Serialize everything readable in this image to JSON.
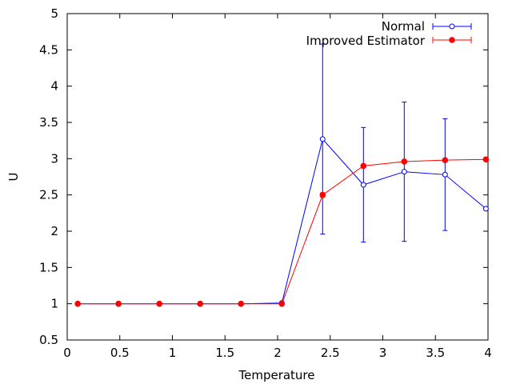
{
  "chart_data": {
    "type": "line",
    "title": "",
    "xlabel": "Temperature",
    "ylabel": "U",
    "xlim": [
      0,
      4
    ],
    "ylim": [
      0.5,
      5
    ],
    "xticks": [
      "0",
      "0.5",
      "1",
      "1.5",
      "2",
      "2.5",
      "3",
      "3.5",
      "4"
    ],
    "yticks": [
      "0.5",
      "1",
      "1.5",
      "2",
      "2.5",
      "3",
      "3.5",
      "4",
      "4.5",
      "5"
    ],
    "grid": false,
    "legend_position": "top-right",
    "series": [
      {
        "name": "Normal",
        "color": "#0000ff",
        "marker": "open-circle",
        "x": [
          0.1,
          0.488,
          0.876,
          1.264,
          1.652,
          2.04,
          2.428,
          2.816,
          3.204,
          3.592,
          3.98
        ],
        "y": [
          1.0,
          1.0,
          1.0,
          1.0,
          1.0,
          1.01,
          3.27,
          2.64,
          2.82,
          2.78,
          2.31
        ],
        "err": [
          0,
          0,
          0,
          0,
          0,
          0,
          1.31,
          0.79,
          0.96,
          0.77,
          0
        ]
      },
      {
        "name": "Improved Estimator",
        "color": "#ff0000",
        "marker": "filled-circle",
        "x": [
          0.1,
          0.488,
          0.876,
          1.264,
          1.652,
          2.04,
          2.428,
          2.816,
          3.204,
          3.592,
          3.98
        ],
        "y": [
          1.0,
          1.0,
          1.0,
          1.0,
          1.0,
          1.0,
          2.5,
          2.9,
          2.96,
          2.98,
          2.99
        ],
        "err": [
          0,
          0,
          0,
          0,
          0,
          0,
          0.03,
          0.02,
          0,
          0,
          0
        ]
      }
    ]
  }
}
